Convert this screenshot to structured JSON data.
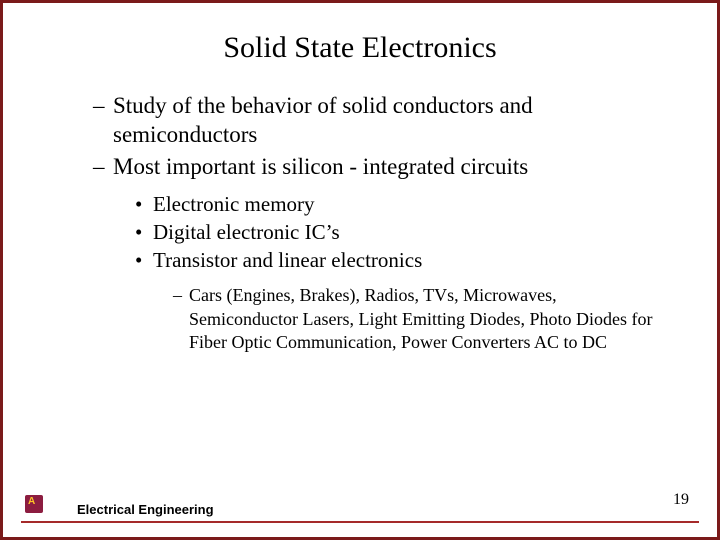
{
  "title": "Solid State Electronics",
  "level1": [
    "Study of the behavior of solid conductors and semiconductors",
    "Most important is silicon - integrated circuits"
  ],
  "level2": [
    "Electronic memory",
    "Digital electronic IC’s",
    "Transistor and linear electronics"
  ],
  "level3": [
    "Cars (Engines, Brakes), Radios, TVs, Microwaves, Semiconductor Lasers, Light Emitting Diodes, Photo Diodes for Fiber Optic Communication, Power Converters AC to DC"
  ],
  "footer": {
    "department": "Electrical Engineering",
    "page_number": "19"
  },
  "colors": {
    "border": "#7a1a1a",
    "footer_line": "#a52a2a",
    "logo_bg": "#8c1d40",
    "logo_fg": "#ffc627",
    "text": "#000000",
    "background": "#ffffff"
  }
}
